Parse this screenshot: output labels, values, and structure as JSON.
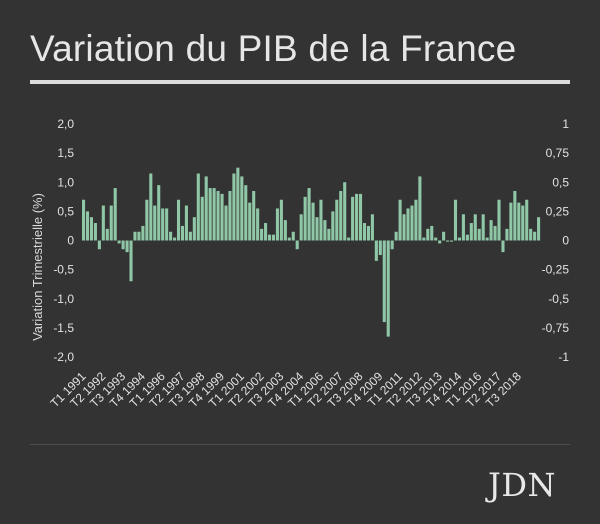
{
  "title": "Variation du PIB de la France",
  "logo": "JDN",
  "colors": {
    "background": "#333333",
    "bar": "#8fc7a7",
    "text": "#e6e6e6"
  },
  "chart_data": {
    "type": "bar",
    "title": "Variation du PIB de la France",
    "ylabel": "Variation Trimestrielle (%)",
    "ylim": [
      -2.0,
      2.0
    ],
    "y2lim": [
      -1,
      1
    ],
    "yticks": [
      "2,0",
      "1,5",
      "1,0",
      "0,5",
      "0",
      "-0,5",
      "-1,0",
      "-1,5",
      "-2,0"
    ],
    "y2ticks": [
      "1",
      "0,75",
      "0,5",
      "0,25",
      "0",
      "-0,25",
      "-0,5",
      "-0,75",
      "-1"
    ],
    "grid": false,
    "legend": "none",
    "start": {
      "year": 1991,
      "quarter": 1
    },
    "x_labels": [
      "T1 1991",
      "T2 1992",
      "T3 1993",
      "T4 1994",
      "T1 1996",
      "T2 1997",
      "T3 1998",
      "T4 1999",
      "T1 2001",
      "T2 2002",
      "T3 2003",
      "T4 2004",
      "T1 2006",
      "T2 2007",
      "T3 2008",
      "T4 2009",
      "T1 2011",
      "T2 2012",
      "T3 2013",
      "T4 2014",
      "T1 2016",
      "T2 2017",
      "T3 2018"
    ],
    "values": [
      0.7,
      0.5,
      0.4,
      0.3,
      -0.15,
      0.6,
      0.2,
      0.6,
      0.9,
      -0.05,
      -0.15,
      -0.2,
      -0.7,
      0.15,
      0.15,
      0.25,
      0.7,
      1.15,
      0.6,
      0.95,
      0.55,
      0.55,
      0.15,
      0.05,
      0.7,
      0.25,
      0.6,
      0.15,
      0.4,
      1.15,
      0.75,
      1.1,
      0.9,
      0.9,
      0.85,
      0.8,
      0.6,
      0.85,
      1.15,
      1.25,
      1.1,
      0.95,
      0.65,
      0.85,
      0.55,
      0.2,
      0.3,
      0.1,
      0.1,
      0.55,
      0.7,
      0.35,
      0.05,
      0.15,
      -0.15,
      0.45,
      0.75,
      0.9,
      0.65,
      0.4,
      0.7,
      0.35,
      0.2,
      0.5,
      0.7,
      0.85,
      1.0,
      0.05,
      0.75,
      0.8,
      0.8,
      0.3,
      0.25,
      0.45,
      -0.35,
      -0.25,
      -1.4,
      -1.65,
      -0.15,
      0.15,
      0.7,
      0.45,
      0.55,
      0.6,
      0.7,
      1.1,
      0.05,
      0.2,
      0.25,
      0.05,
      -0.05,
      0.15,
      -0.02,
      -0.02,
      0.7,
      0.05,
      0.45,
      0.1,
      0.3,
      0.45,
      0.2,
      0.45,
      0.05,
      0.35,
      0.25,
      0.7,
      -0.2,
      0.2,
      0.65,
      0.85,
      0.65,
      0.6,
      0.7,
      0.2,
      0.15,
      0.4
    ]
  }
}
